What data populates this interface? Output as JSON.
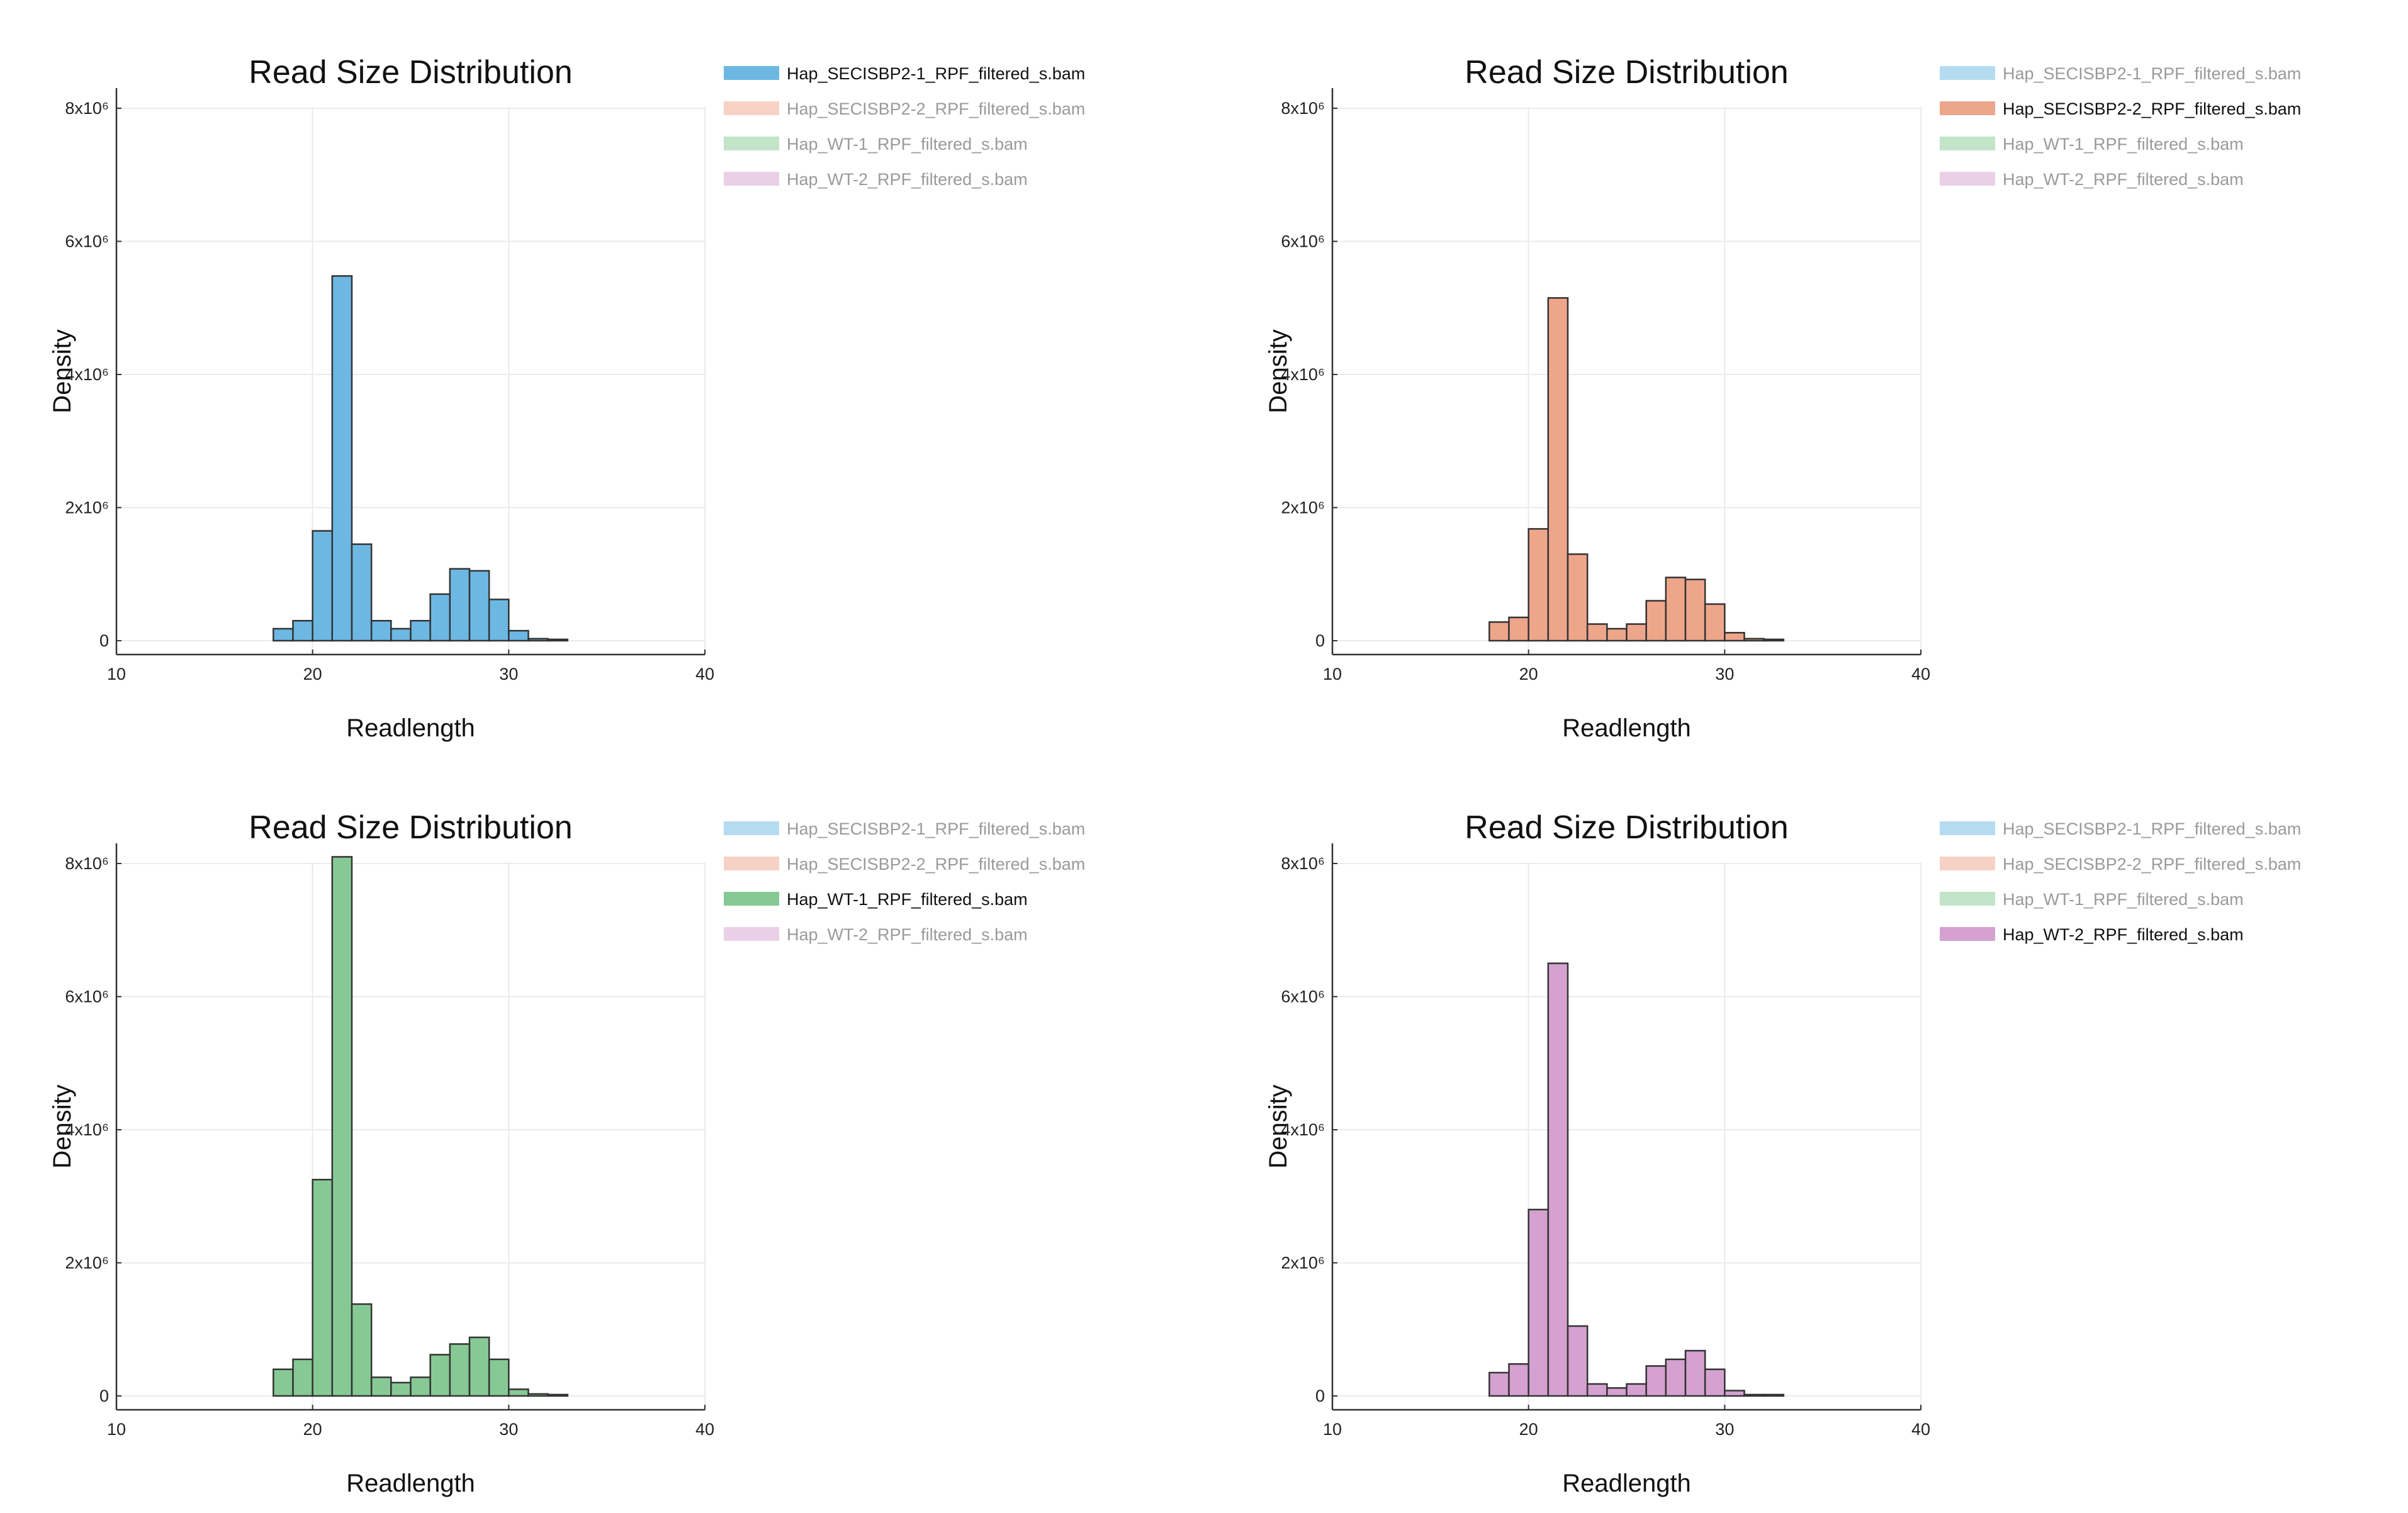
{
  "chart_data": [
    {
      "type": "bar",
      "title": "Read Size Distribution",
      "xlabel": "Readlength",
      "ylabel": "Density",
      "xlim": [
        10,
        40
      ],
      "ylim": [
        -0.25,
        8.2
      ],
      "xticks": [
        "10",
        "20",
        "30",
        "40"
      ],
      "yticks": [
        "0",
        "2x10⁶",
        "4x10⁶",
        "6x10⁶",
        "8x10⁶"
      ],
      "grid": true,
      "legend_position": "top-right",
      "legend": [
        "Hap_SECISBP2-1_RPF_filtered_s.bam",
        "Hap_SECISBP2-2_RPF_filtered_s.bam",
        "Hap_WT-1_RPF_filtered_s.bam",
        "Hap_WT-2_RPF_filtered_s.bam"
      ],
      "highlighted_series": 0,
      "series_color": "#6cb8e3",
      "bin_edges": [
        17,
        18,
        19,
        20,
        21,
        22,
        23,
        24,
        25,
        26,
        27,
        28,
        29,
        30,
        31,
        32,
        33
      ],
      "values": [
        0.0,
        0.18,
        0.3,
        1.65,
        5.48,
        1.45,
        0.3,
        0.18,
        0.3,
        0.7,
        1.08,
        1.05,
        0.62,
        0.15,
        0.03,
        0.02
      ]
    },
    {
      "type": "bar",
      "title": "Read Size Distribution",
      "xlabel": "Readlength",
      "ylabel": "Density",
      "xlim": [
        10,
        40
      ],
      "ylim": [
        -0.25,
        8.2
      ],
      "xticks": [
        "10",
        "20",
        "30",
        "40"
      ],
      "yticks": [
        "0",
        "2x10⁶",
        "4x10⁶",
        "6x10⁶",
        "8x10⁶"
      ],
      "grid": true,
      "legend_position": "top-right",
      "legend": [
        "Hap_SECISBP2-1_RPF_filtered_s.bam",
        "Hap_SECISBP2-2_RPF_filtered_s.bam",
        "Hap_WT-1_RPF_filtered_s.bam",
        "Hap_WT-2_RPF_filtered_s.bam"
      ],
      "highlighted_series": 1,
      "series_color": "#eea68b",
      "bin_edges": [
        17,
        18,
        19,
        20,
        21,
        22,
        23,
        24,
        25,
        26,
        27,
        28,
        29,
        30,
        31,
        32,
        33
      ],
      "values": [
        0.0,
        0.28,
        0.35,
        1.68,
        5.15,
        1.3,
        0.25,
        0.18,
        0.25,
        0.6,
        0.95,
        0.92,
        0.55,
        0.12,
        0.03,
        0.02
      ]
    },
    {
      "type": "bar",
      "title": "Read Size Distribution",
      "xlabel": "Readlength",
      "ylabel": "Density",
      "xlim": [
        10,
        40
      ],
      "ylim": [
        -0.25,
        8.2
      ],
      "xticks": [
        "10",
        "20",
        "30",
        "40"
      ],
      "yticks": [
        "0",
        "2x10⁶",
        "4x10⁶",
        "6x10⁶",
        "8x10⁶"
      ],
      "grid": true,
      "legend_position": "top-right",
      "legend": [
        "Hap_SECISBP2-1_RPF_filtered_s.bam",
        "Hap_SECISBP2-2_RPF_filtered_s.bam",
        "Hap_WT-1_RPF_filtered_s.bam",
        "Hap_WT-2_RPF_filtered_s.bam"
      ],
      "highlighted_series": 2,
      "series_color": "#86c994",
      "bin_edges": [
        17,
        18,
        19,
        20,
        21,
        22,
        23,
        24,
        25,
        26,
        27,
        28,
        29,
        30,
        31,
        32,
        33
      ],
      "values": [
        0.0,
        0.4,
        0.55,
        3.25,
        8.1,
        1.38,
        0.28,
        0.2,
        0.28,
        0.62,
        0.78,
        0.88,
        0.55,
        0.1,
        0.03,
        0.02
      ]
    },
    {
      "type": "bar",
      "title": "Read Size Distribution",
      "xlabel": "Readlength",
      "ylabel": "Density",
      "xlim": [
        10,
        40
      ],
      "ylim": [
        -0.25,
        8.2
      ],
      "xticks": [
        "10",
        "20",
        "30",
        "40"
      ],
      "yticks": [
        "0",
        "2x10⁶",
        "4x10⁶",
        "6x10⁶",
        "8x10⁶"
      ],
      "grid": true,
      "legend_position": "top-right",
      "legend": [
        "Hap_SECISBP2-1_RPF_filtered_s.bam",
        "Hap_SECISBP2-2_RPF_filtered_s.bam",
        "Hap_WT-1_RPF_filtered_s.bam",
        "Hap_WT-2_RPF_filtered_s.bam"
      ],
      "highlighted_series": 3,
      "series_color": "#d4a1d0",
      "bin_edges": [
        17,
        18,
        19,
        20,
        21,
        22,
        23,
        24,
        25,
        26,
        27,
        28,
        29,
        30,
        31,
        32,
        33
      ],
      "values": [
        0.0,
        0.35,
        0.48,
        2.8,
        6.5,
        1.05,
        0.18,
        0.12,
        0.18,
        0.45,
        0.55,
        0.68,
        0.4,
        0.08,
        0.02,
        0.02
      ]
    }
  ],
  "legend_colors": [
    "#6cb8e3",
    "#eea68b",
    "#86c994",
    "#d4a1d0"
  ],
  "legend_highlight_text_color": "#111111",
  "legend_dim_text_color": "#9a9a9a"
}
